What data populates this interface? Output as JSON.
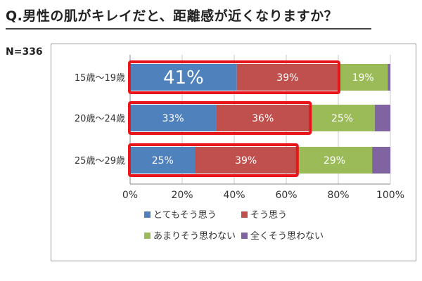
{
  "header": {
    "question": "Q.男性の肌がキレイだと、距離感が近くなりますか？",
    "sample_size": "N=336"
  },
  "colors": {
    "series": [
      "#4f81bd",
      "#c0504d",
      "#9bbb59",
      "#8064a2"
    ],
    "highlight": "#e8151b"
  },
  "chart_data": {
    "type": "bar",
    "orientation": "horizontal",
    "stacked": "100%",
    "categories": [
      "15歳～19歳",
      "20歳～24歳",
      "25歳～29歳"
    ],
    "series": [
      {
        "name": "とてもそう思う",
        "values": [
          41,
          33,
          25
        ],
        "labels": [
          "41%",
          "33%",
          "25%"
        ]
      },
      {
        "name": "そう思う",
        "values": [
          39,
          36,
          39
        ],
        "labels": [
          "39%",
          "36%",
          "39%"
        ]
      },
      {
        "name": "あまりそう思わない",
        "values": [
          19,
          25,
          29
        ],
        "labels": [
          "19%",
          "25%",
          "29%"
        ]
      },
      {
        "name": "全くそう思わない",
        "values": [
          1,
          6,
          7
        ],
        "labels": [
          "",
          "",
          ""
        ]
      }
    ],
    "highlight_combined": [
      80,
      69,
      64
    ],
    "xlim": [
      0,
      100
    ],
    "xticks": [
      "0%",
      "20%",
      "40%",
      "60%",
      "80%",
      "100%"
    ],
    "grid": true,
    "legend_position": "bottom"
  }
}
